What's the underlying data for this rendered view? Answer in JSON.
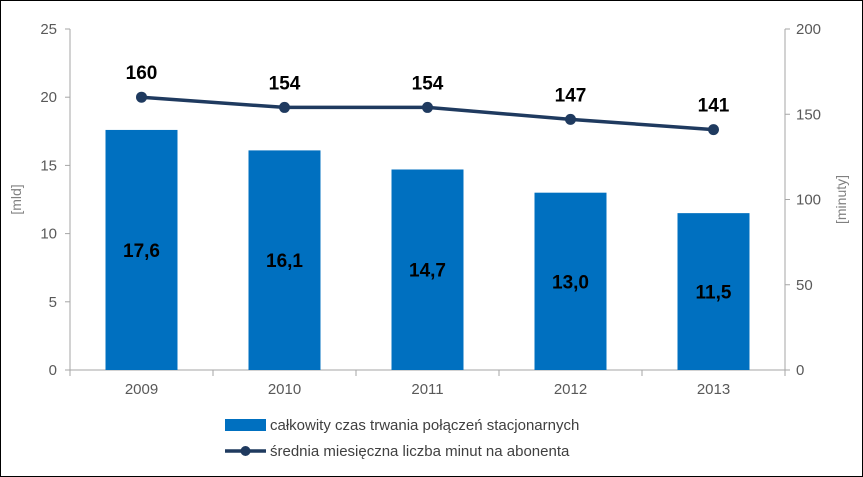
{
  "chart_data": {
    "type": "bar+line",
    "categories": [
      "2009",
      "2010",
      "2011",
      "2012",
      "2013"
    ],
    "series": [
      {
        "name": "całkowity czas trwania połączeń stacjonarnych",
        "type": "bar",
        "axis": "left",
        "values": [
          17.6,
          16.1,
          14.7,
          13.0,
          11.5
        ],
        "labels": [
          "17,6",
          "16,1",
          "14,7",
          "13,0",
          "11,5"
        ],
        "color": "#0070c0"
      },
      {
        "name": "średnia miesięczna liczba minut na abonenta",
        "type": "line",
        "axis": "right",
        "values": [
          160,
          154,
          154,
          147,
          141
        ],
        "labels": [
          "160",
          "154",
          "154",
          "147",
          "141"
        ],
        "color": "#1f3a5f"
      }
    ],
    "y_left": {
      "label": "[mld]",
      "ylim": [
        0,
        25
      ],
      "ticks": [
        "0",
        "5",
        "10",
        "15",
        "20",
        "25"
      ]
    },
    "y_right": {
      "label": "[minuty]",
      "ylim": [
        0,
        200
      ],
      "ticks": [
        "0",
        "50",
        "100",
        "150",
        "200"
      ]
    },
    "grid": false,
    "legend": "bottom"
  }
}
